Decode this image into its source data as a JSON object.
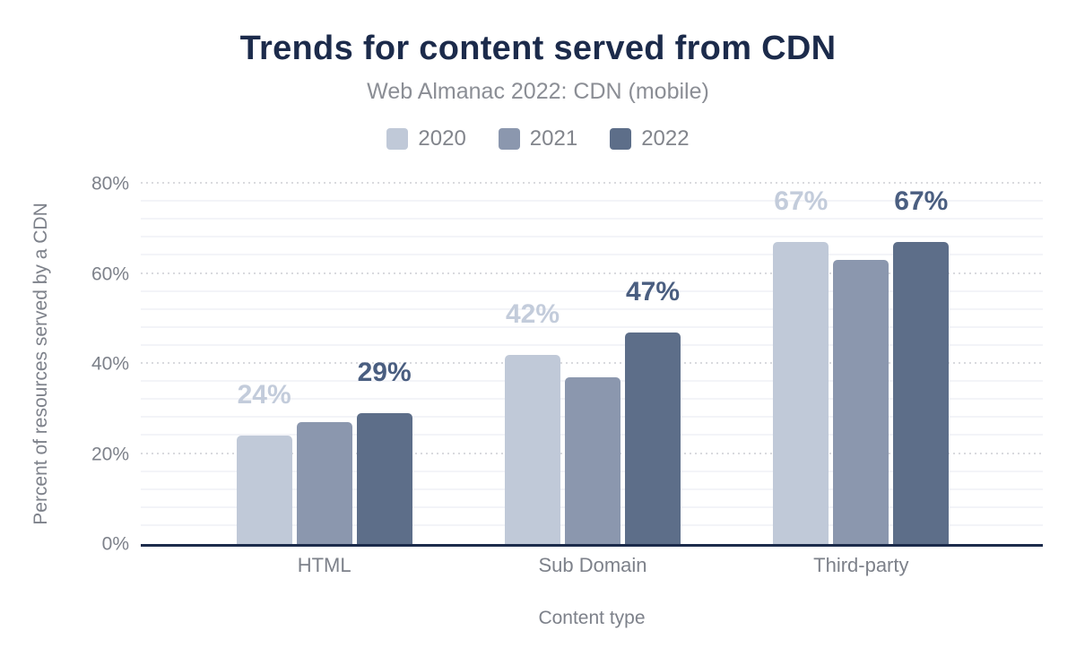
{
  "chart_data": {
    "type": "bar",
    "title": "Trends for content served from CDN",
    "subtitle": "Web Almanac 2022: CDN (mobile)",
    "xlabel": "Content type",
    "ylabel": "Percent of resources served by a CDN",
    "categories": [
      "HTML",
      "Sub Domain",
      "Third-party"
    ],
    "series": [
      {
        "name": "2020",
        "color": "#c0c9d8",
        "label_color": "#c3ccdb",
        "values": [
          24,
          42,
          67
        ],
        "labels": [
          "24%",
          "42%",
          "67%"
        ]
      },
      {
        "name": "2021",
        "color": "#8b97ae",
        "label_color": "",
        "values": [
          27,
          37,
          63
        ],
        "labels": [
          "",
          "",
          ""
        ]
      },
      {
        "name": "2022",
        "color": "#5d6e89",
        "label_color": "#4a5e80",
        "values": [
          29,
          47,
          67
        ],
        "labels": [
          "29%",
          "47%",
          "67%"
        ]
      }
    ],
    "ylim": [
      0,
      80
    ],
    "yticks": [
      0,
      20,
      40,
      60,
      80
    ],
    "ytick_suffix": "%",
    "grid": {
      "minor_step": 4,
      "major_step": 20
    },
    "legend_position": "top",
    "grid_on": true
  },
  "colors": {
    "background": "#ffffff",
    "title": "#1c2b4b",
    "subtitle": "#8b8e95",
    "axis_text": "#7d818a",
    "legend_text": "#82858c",
    "axis_line": "#1c2b4b",
    "grid_major": "#d9dade",
    "grid_minor": "#f3f4f8"
  }
}
